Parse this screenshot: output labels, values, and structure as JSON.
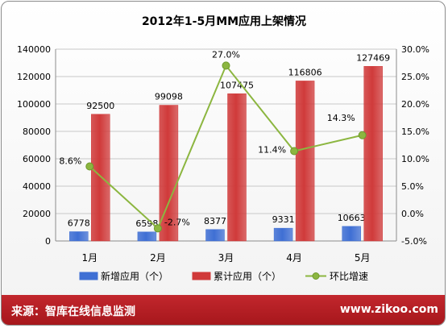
{
  "chart_data": {
    "type": "bar",
    "title": "2012年1-5月MM应用上架情况",
    "categories": [
      "1月",
      "2月",
      "3月",
      "4月",
      "5月"
    ],
    "series": [
      {
        "name": "新增应用（个）",
        "kind": "bar",
        "axis": "left",
        "color": "#3f6fd4",
        "values": [
          6778,
          6598,
          8377,
          9331,
          10663
        ],
        "labels": [
          "6778",
          "6598",
          "8377",
          "9331",
          "10663"
        ]
      },
      {
        "name": "累计应用（个）",
        "kind": "bar",
        "axis": "left",
        "color": "#d03a3a",
        "values": [
          92500,
          99098,
          107475,
          116806,
          127469
        ],
        "labels": [
          "92500",
          "99098",
          "107475",
          "116806",
          "127469"
        ]
      },
      {
        "name": "环比增速",
        "kind": "line",
        "axis": "right",
        "color": "#8cb640",
        "values": [
          8.6,
          -2.7,
          27.0,
          11.4,
          14.3
        ],
        "labels": [
          "8.6%",
          "-2.7%",
          "27.0%",
          "11.4%",
          "14.3%"
        ]
      }
    ],
    "y_left": {
      "min": 0,
      "max": 140000,
      "ticks": [
        "0",
        "20000",
        "40000",
        "60000",
        "80000",
        "100000",
        "120000",
        "140000"
      ]
    },
    "y_right": {
      "min": -5,
      "max": 30,
      "ticks": [
        "-5.0%",
        "0.0%",
        "5.0%",
        "10.0%",
        "15.0%",
        "20.0%",
        "25.0%",
        "30.0%"
      ]
    },
    "grid": true,
    "legend_position": "bottom"
  },
  "footer": {
    "source": "来源：智库在线信息监测",
    "site": "www.zikoo.com"
  }
}
